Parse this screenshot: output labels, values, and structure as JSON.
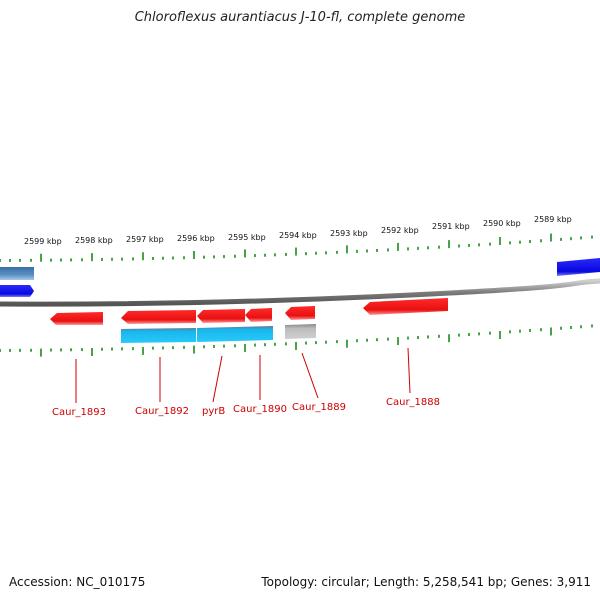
{
  "header": {
    "title": "Chloroflexus aurantiacus J-10-fl, complete genome"
  },
  "footer": {
    "accession": "Accession: NC_010175",
    "summary": "Topology: circular; Length: 5,258,541 bp; Genes: 3,911"
  },
  "scale": {
    "unit": "kbp",
    "ticks": [
      {
        "kbp": 2599,
        "label": "2599 kbp"
      },
      {
        "kbp": 2598,
        "label": "2598 kbp"
      },
      {
        "kbp": 2597,
        "label": "2597 kbp"
      },
      {
        "kbp": 2596,
        "label": "2596 kbp"
      },
      {
        "kbp": 2595,
        "label": "2595 kbp"
      },
      {
        "kbp": 2594,
        "label": "2594 kbp"
      },
      {
        "kbp": 2593,
        "label": "2593 kbp"
      },
      {
        "kbp": 2592,
        "label": "2592 kbp"
      },
      {
        "kbp": 2591,
        "label": "2591 kbp"
      },
      {
        "kbp": 2590,
        "label": "2590 kbp"
      },
      {
        "kbp": 2589,
        "label": "2589 kbp"
      }
    ]
  },
  "genes": [
    {
      "id": "caur-1893",
      "label": "Caur_1893",
      "track": "reverse",
      "color": "#ee1111"
    },
    {
      "id": "caur-1892",
      "label": "Caur_1892",
      "track": "reverse",
      "color": "#ee1111"
    },
    {
      "id": "pyrb",
      "label": "pyrB",
      "track": "reverse",
      "color": "#ee1111"
    },
    {
      "id": "caur-1890",
      "label": "Caur_1890",
      "track": "reverse",
      "color": "#ee1111"
    },
    {
      "id": "caur-1889",
      "label": "Caur_1889",
      "track": "reverse",
      "color": "#ee1111"
    },
    {
      "id": "caur-1888",
      "label": "Caur_1888",
      "track": "reverse",
      "color": "#ee1111"
    }
  ],
  "colors": {
    "cds": "#ee1111",
    "cds_shade": "#ff8888",
    "forward_cds": "#1111ee",
    "annotation": "#1ab0e8",
    "annotation_left": "#4a7fb3",
    "pseudo": "#aaaaaa",
    "ticks": "#1a8a1a",
    "backbone": "#808080",
    "label": "#cc0000"
  }
}
